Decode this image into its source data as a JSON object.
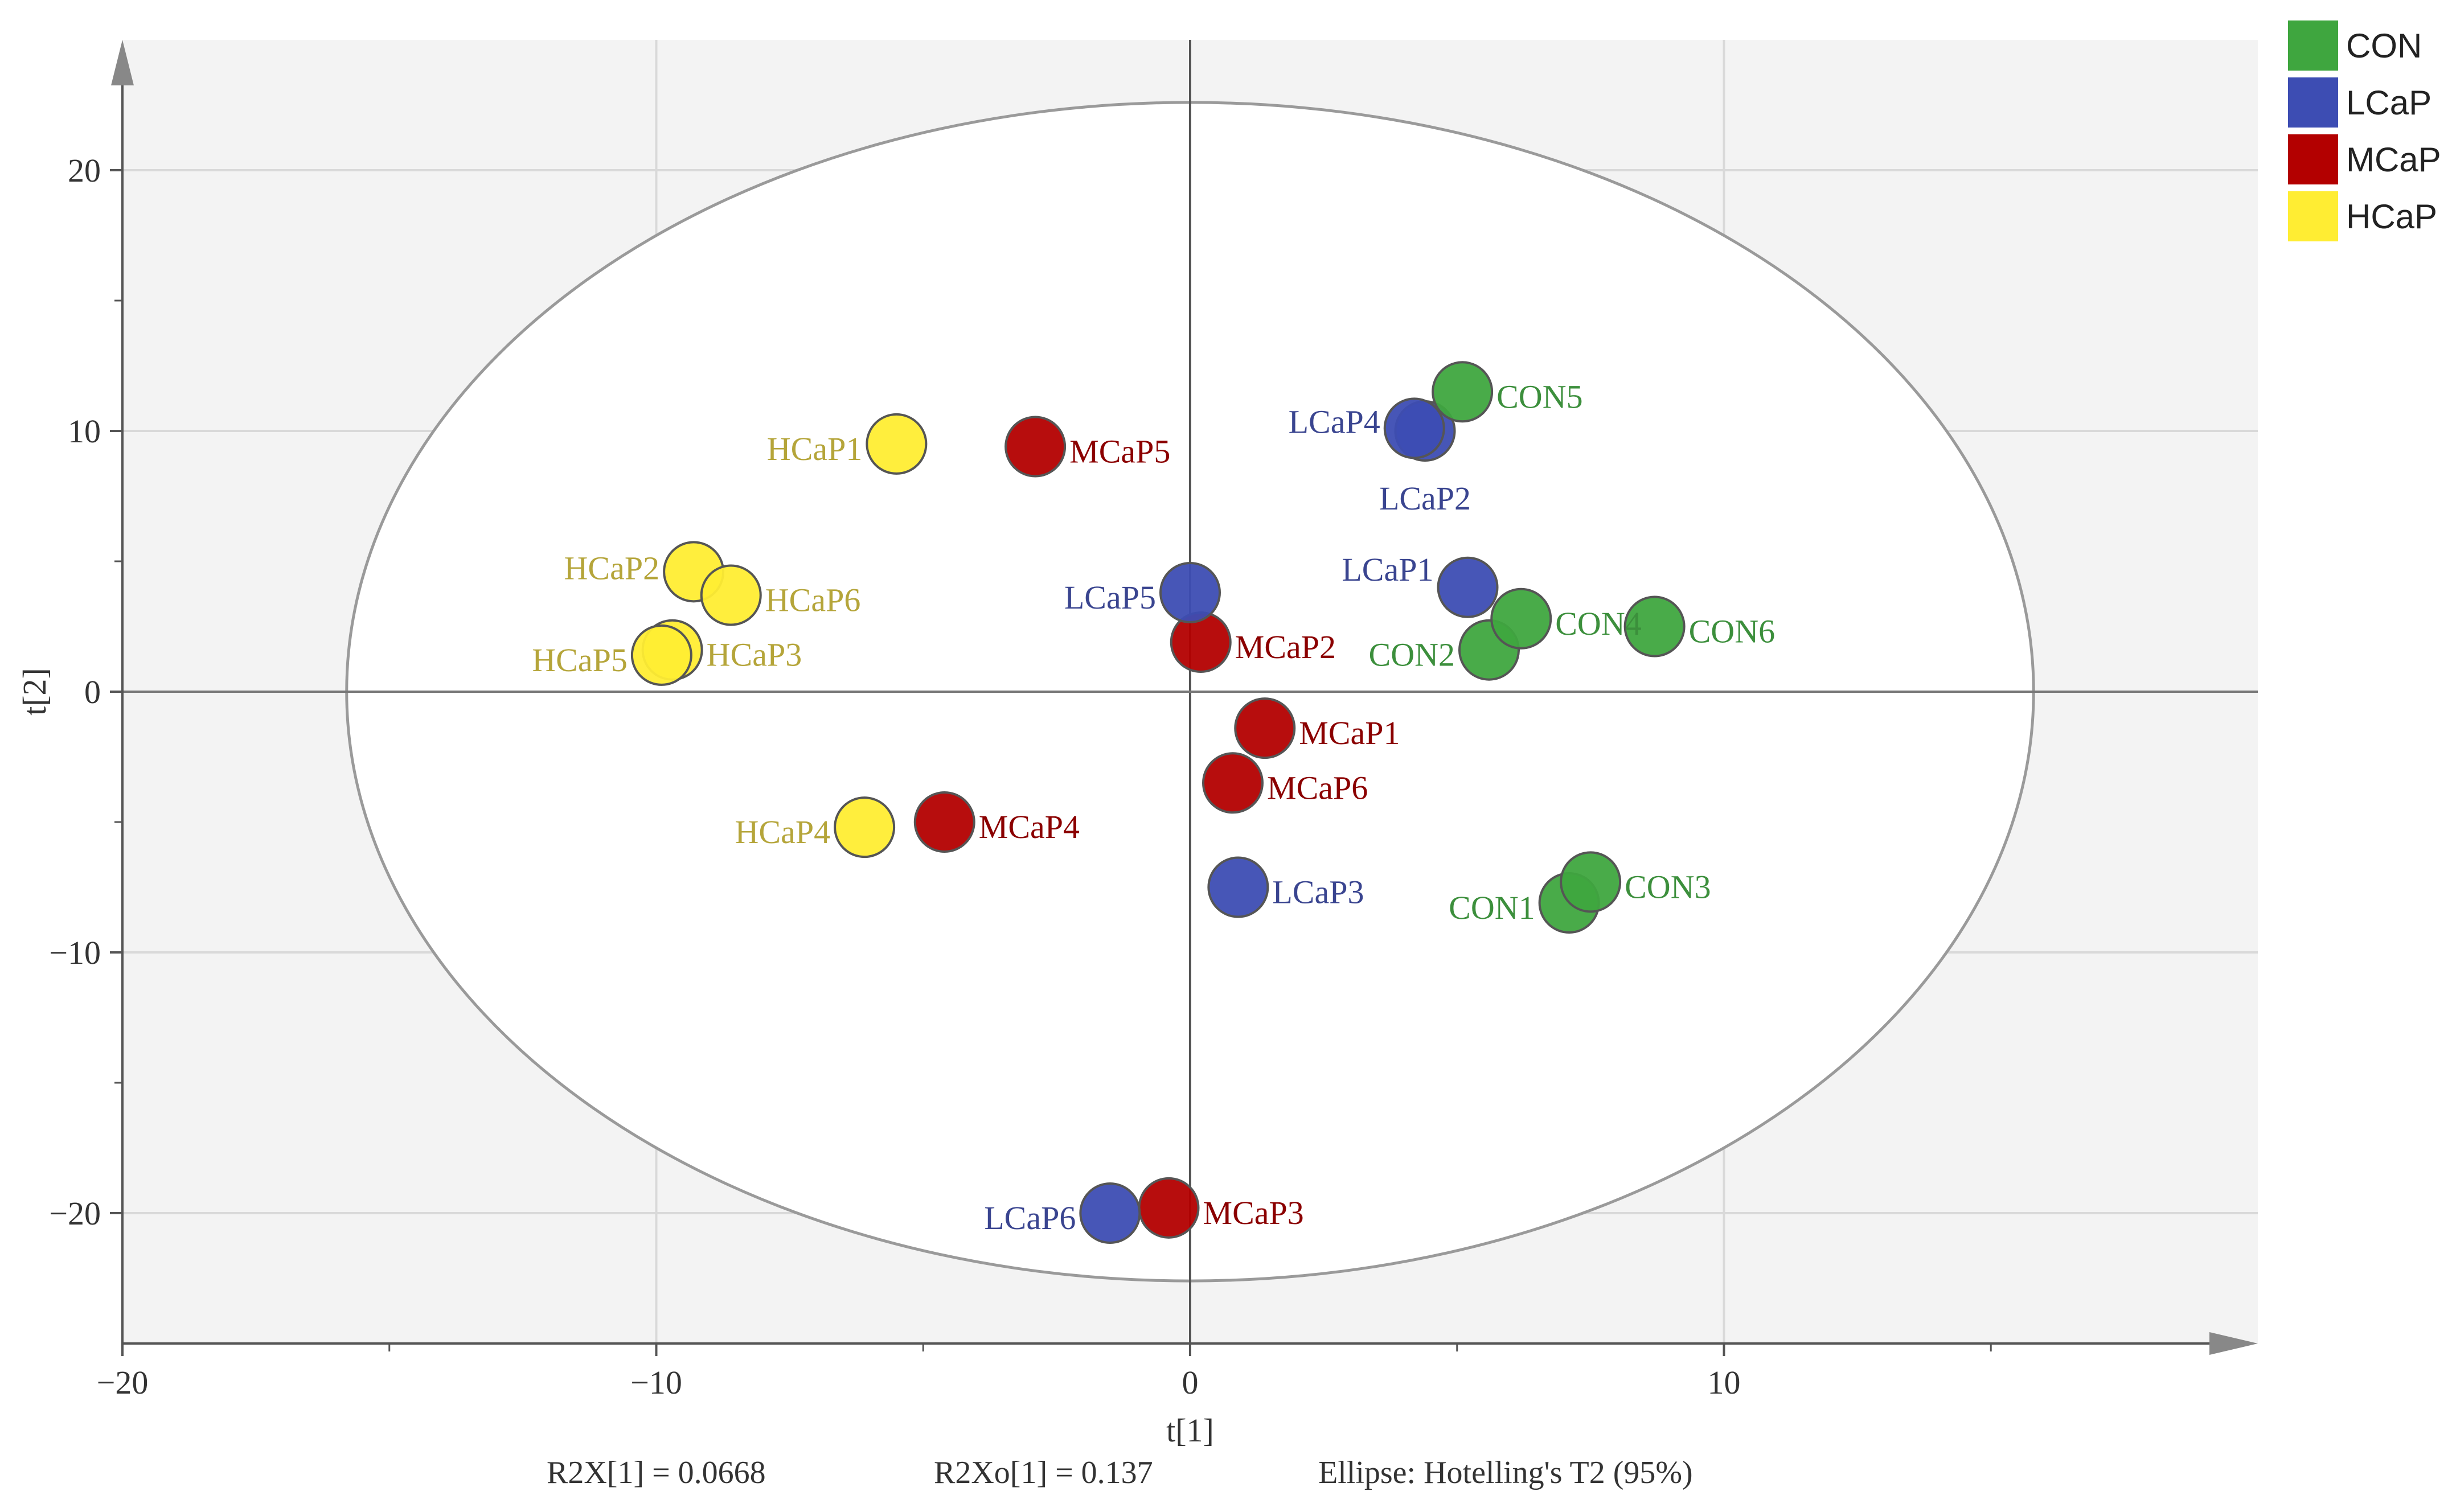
{
  "colors": {
    "CON": "#3fa63f",
    "LCaP": "#3d4db3",
    "MCaP": "#b30000",
    "HCaP": "#ffed33"
  },
  "label_colors": {
    "CON": "#3c8f3c",
    "LCaP": "#3a4590",
    "MCaP": "#8b0000",
    "HCaP": "#b5a53a"
  },
  "chart_data": {
    "type": "scatter",
    "title": "",
    "xlabel": "t[1]",
    "ylabel": "t[2]",
    "xlim": [
      -20,
      20
    ],
    "ylim": [
      -25,
      25
    ],
    "x_ticks": [
      -20,
      -10,
      0,
      10
    ],
    "x_tick_labels": [
      "−20",
      "−10",
      "0",
      "10"
    ],
    "y_ticks": [
      -20,
      -10,
      0,
      10,
      20
    ],
    "y_tick_labels": [
      "−20",
      "−10",
      "0",
      "10",
      "20"
    ],
    "grid": true,
    "legend_position": "top-right",
    "ellipse": {
      "center": [
        0,
        0
      ],
      "semi_x": 15.8,
      "semi_y": 22.6,
      "label": "Ellipse: Hotelling's T2 (95%)"
    },
    "series": [
      {
        "name": "CON",
        "points": [
          {
            "label": "CON1",
            "x": 7.1,
            "y": -8.1
          },
          {
            "label": "CON2",
            "x": 5.6,
            "y": 1.6
          },
          {
            "label": "CON3",
            "x": 7.5,
            "y": -7.3
          },
          {
            "label": "CON4",
            "x": 6.2,
            "y": 2.8
          },
          {
            "label": "CON5",
            "x": 5.1,
            "y": 11.5
          },
          {
            "label": "CON6",
            "x": 8.7,
            "y": 2.5
          }
        ]
      },
      {
        "name": "LCaP",
        "points": [
          {
            "label": "LCaP1",
            "x": 5.2,
            "y": 4.0
          },
          {
            "label": "LCaP2",
            "x": 4.4,
            "y": 10.0
          },
          {
            "label": "LCaP3",
            "x": 0.9,
            "y": -7.5
          },
          {
            "label": "LCaP4",
            "x": 4.2,
            "y": 10.1
          },
          {
            "label": "LCaP5",
            "x": 0.0,
            "y": 3.8
          },
          {
            "label": "LCaP6",
            "x": -1.5,
            "y": -20.0
          }
        ]
      },
      {
        "name": "MCaP",
        "points": [
          {
            "label": "MCaP1",
            "x": 1.4,
            "y": -1.4
          },
          {
            "label": "MCaP2",
            "x": 0.2,
            "y": 1.9
          },
          {
            "label": "MCaP3",
            "x": -0.4,
            "y": -19.8
          },
          {
            "label": "MCaP4",
            "x": -4.6,
            "y": -5.0
          },
          {
            "label": "MCaP5",
            "x": -2.9,
            "y": 9.4
          },
          {
            "label": "MCaP6",
            "x": 0.8,
            "y": -3.5
          }
        ]
      },
      {
        "name": "HCaP",
        "points": [
          {
            "label": "HCaP1",
            "x": -5.5,
            "y": 9.5
          },
          {
            "label": "HCaP2",
            "x": -9.3,
            "y": 4.6
          },
          {
            "label": "HCaP3",
            "x": -9.7,
            "y": 1.6
          },
          {
            "label": "HCaP4",
            "x": -6.1,
            "y": -5.2
          },
          {
            "label": "HCaP5",
            "x": -9.9,
            "y": 1.4
          },
          {
            "label": "HCaP6",
            "x": -8.6,
            "y": 3.7
          }
        ]
      }
    ],
    "footer": {
      "r2x": "R2X[1] = 0.0668",
      "r2xo": "R2Xo[1] = 0.137",
      "ellipse_note": "Ellipse: Hotelling's T2 (95%)"
    }
  },
  "legend": {
    "items": [
      {
        "key": "CON",
        "label": "CON"
      },
      {
        "key": "LCaP",
        "label": "LCaP"
      },
      {
        "key": "MCaP",
        "label": "MCaP"
      },
      {
        "key": "HCaP",
        "label": "HCaP"
      }
    ]
  }
}
